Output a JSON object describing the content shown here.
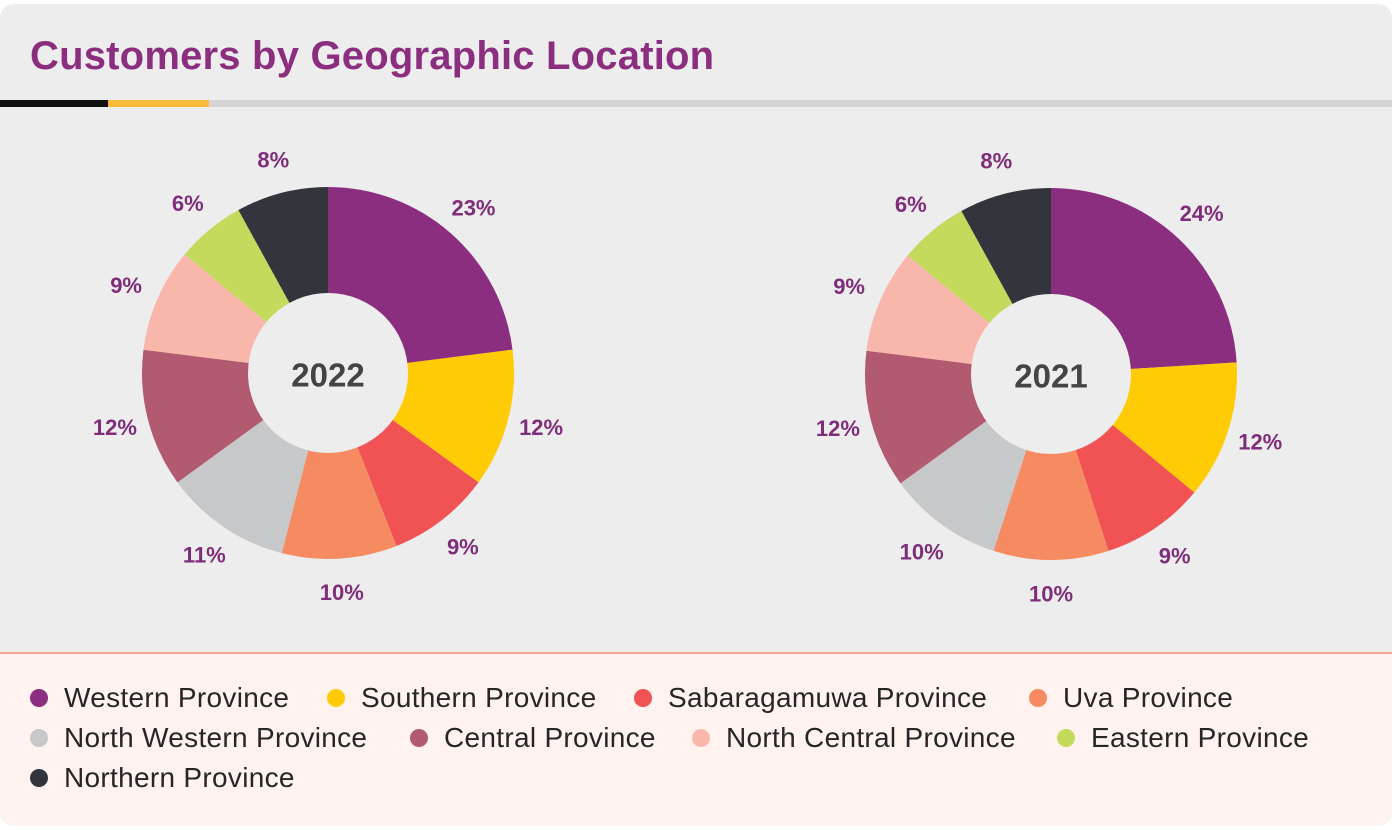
{
  "header": {
    "title": "Customers by Geographic Location"
  },
  "colors": {
    "Western Province": "#8b2e80",
    "Southern Province": "#ffcb05",
    "Sabaragamuwa Province": "#f15354",
    "Uva Province": "#f68b61",
    "North Western Province": "#c7c8ca",
    "Central Province": "#b15a70",
    "North Central Province": "#f9b7ab",
    "Eastern Province": "#c4da5c",
    "Northern Province": "#32363c"
  },
  "chart_data": [
    {
      "type": "pie",
      "center_label": "2022",
      "categories": [
        "Western Province",
        "Southern Province",
        "Sabaragamuwa Province",
        "Uva Province",
        "North Western Province",
        "Central Province",
        "North Central Province",
        "Eastern Province",
        "Northern Province"
      ],
      "values": [
        23,
        12,
        9,
        10,
        11,
        12,
        9,
        6,
        8
      ],
      "data_labels": [
        "23%",
        "12%",
        "9%",
        "10%",
        "11%",
        "12%",
        "9%",
        "6%",
        "8%"
      ]
    },
    {
      "type": "pie",
      "center_label": "2021",
      "categories": [
        "Western Province",
        "Southern Province",
        "Sabaragamuwa Province",
        "Uva Province",
        "North Western Province",
        "Central Province",
        "North Central Province",
        "Eastern Province",
        "Northern Province"
      ],
      "values": [
        24,
        12,
        9,
        10,
        10,
        12,
        9,
        6,
        8
      ],
      "data_labels": [
        "24%",
        "12%",
        "9%",
        "10%",
        "10%",
        "12%",
        "9%",
        "6%",
        "8%"
      ]
    }
  ],
  "legend": {
    "items": [
      {
        "label": "Western Province"
      },
      {
        "label": "Southern Province"
      },
      {
        "label": "Sabaragamuwa Province"
      },
      {
        "label": "Uva Province"
      },
      {
        "label": "North Western Province"
      },
      {
        "label": "Central Province"
      },
      {
        "label": "North Central Province"
      },
      {
        "label": "Eastern Province"
      },
      {
        "label": "Northern Province"
      }
    ]
  }
}
